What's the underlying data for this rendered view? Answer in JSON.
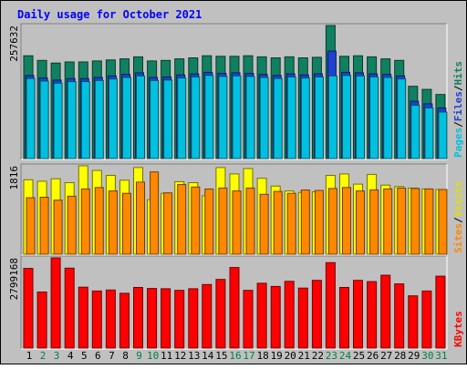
{
  "chart_data": {
    "type": "bar",
    "title": "Daily usage for October 2021",
    "categories": [
      "1",
      "2",
      "3",
      "4",
      "5",
      "6",
      "7",
      "8",
      "9",
      "10",
      "11",
      "12",
      "13",
      "14",
      "15",
      "16",
      "17",
      "18",
      "19",
      "20",
      "21",
      "22",
      "23",
      "24",
      "25",
      "26",
      "27",
      "28",
      "29",
      "30",
      "31"
    ],
    "weekend_days": [
      "2",
      "3",
      "9",
      "10",
      "16",
      "17",
      "23",
      "24",
      "30",
      "31"
    ],
    "panels": [
      {
        "id": "hits",
        "max_label": "257632",
        "ylim": [
          0,
          257632
        ],
        "label_words": [
          "Pages",
          "Files",
          "Hits"
        ],
        "label_seps": [
          "/",
          "/"
        ],
        "label_colors": [
          "#00c0e0",
          "#2040d0",
          "#108060"
        ],
        "series": [
          {
            "name": "Hits",
            "color": "#108060",
            "values": [
              199000,
              190000,
              185000,
              187000,
              187000,
              189000,
              191000,
              193000,
              197000,
              189000,
              190000,
              193000,
              195000,
              199000,
              198000,
              198000,
              199000,
              197000,
              195000,
              197000,
              195000,
              196000,
              257632,
              198000,
              199000,
              197000,
              193000,
              190000,
              140000,
              134000,
              124000
            ]
          },
          {
            "name": "Files",
            "color": "#2040d0",
            "values": [
              161000,
              156000,
              152000,
              155000,
              155000,
              157000,
              160000,
              163000,
              166000,
              157000,
              158000,
              162000,
              164000,
              167000,
              165000,
              166000,
              165000,
              163000,
              161000,
              164000,
              162000,
              164000,
              208000,
              167000,
              166000,
              164000,
              163000,
              160000,
              111000,
              106000,
              98000
            ]
          },
          {
            "name": "Pages",
            "color": "#00c0e0",
            "values": [
              155000,
              150000,
              146000,
              149000,
              149000,
              151000,
              154000,
              157000,
              160000,
              151000,
              152000,
              156000,
              158000,
              161000,
              159000,
              160000,
              159000,
              157000,
              155000,
              158000,
              156000,
              158000,
              160000,
              161000,
              160000,
              158000,
              157000,
              154000,
              103000,
              98000,
              90000
            ]
          }
        ]
      },
      {
        "id": "visits",
        "max_label": "1816",
        "ylim": [
          0,
          1816
        ],
        "label_words": [
          "Sites",
          "Visits"
        ],
        "label_seps": [
          "/"
        ],
        "label_colors": [
          "#ff8800",
          "#e0e000"
        ],
        "series": [
          {
            "name": "Visits",
            "color": "#ffff00",
            "values": [
              1530,
              1500,
              1550,
              1470,
              1816,
              1720,
              1620,
              1520,
              1780,
              1120,
              1250,
              1490,
              1470,
              1200,
              1780,
              1650,
              1760,
              1560,
              1400,
              1300,
              1270,
              1280,
              1620,
              1650,
              1440,
              1640,
              1420,
              1390,
              1360,
              1340,
              1330
            ]
          },
          {
            "name": "Sites",
            "color": "#ff8800",
            "values": [
              1160,
              1170,
              1110,
              1190,
              1340,
              1370,
              1300,
              1250,
              1480,
              1690,
              1260,
              1430,
              1380,
              1340,
              1360,
              1300,
              1360,
              1230,
              1290,
              1250,
              1320,
              1310,
              1350,
              1370,
              1300,
              1320,
              1340,
              1360,
              1350,
              1340,
              1330
            ]
          }
        ]
      },
      {
        "id": "kbytes",
        "max_label": "2799168",
        "ylim": [
          0,
          2799168
        ],
        "label_words": [
          "KBytes"
        ],
        "label_seps": [],
        "label_colors": [
          "#ff0000"
        ],
        "series": [
          {
            "name": "KBytes",
            "color": "#ff0000",
            "values": [
              2470000,
              1740000,
              2799168,
              2480000,
              1890000,
              1770000,
              1800000,
              1700000,
              1880000,
              1850000,
              1840000,
              1790000,
              1840000,
              1970000,
              2130000,
              2500000,
              1790000,
              2010000,
              1910000,
              2070000,
              1860000,
              2100000,
              2650000,
              1880000,
              2100000,
              2060000,
              2260000,
              1990000,
              1620000,
              1770000,
              2230000
            ]
          }
        ]
      }
    ]
  }
}
